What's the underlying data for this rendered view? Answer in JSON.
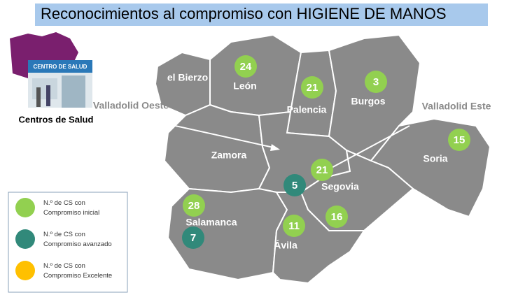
{
  "header": {
    "title": "Reconocimientos al compromiso con HIGIENE DE MANOS"
  },
  "logo": {
    "sign": "CENTRO DE SALUD",
    "caption": "Centros de Salud"
  },
  "regions": {
    "oeste": "Valladolid Oeste",
    "este": "Valladolid Este"
  },
  "provinces": [
    "el Bierzo",
    "León",
    "Palencia",
    "Burgos",
    "Soria",
    "Zamora",
    "Segovia",
    "Salamanca",
    "Ávila"
  ],
  "markers": [
    {
      "value": 24,
      "color": "#92d050"
    },
    {
      "value": 21,
      "color": "#92d050"
    },
    {
      "value": 3,
      "color": "#92d050"
    },
    {
      "value": 15,
      "color": "#92d050"
    },
    {
      "value": 21,
      "color": "#92d050"
    },
    {
      "value": 5,
      "color": "#31897a"
    },
    {
      "value": 28,
      "color": "#92d050"
    },
    {
      "value": 16,
      "color": "#92d050"
    },
    {
      "value": 11,
      "color": "#92d050"
    },
    {
      "value": 7,
      "color": "#31897a"
    }
  ],
  "legend": [
    {
      "label": "N.º de CS con\nCompromiso inicial",
      "color": "#92d050"
    },
    {
      "label": "N.º de CS con\nCompromiso avanzado",
      "color": "#31897a"
    },
    {
      "label": "N.º de CS con\nCompromiso Excelente",
      "color": "#ffc000"
    }
  ]
}
